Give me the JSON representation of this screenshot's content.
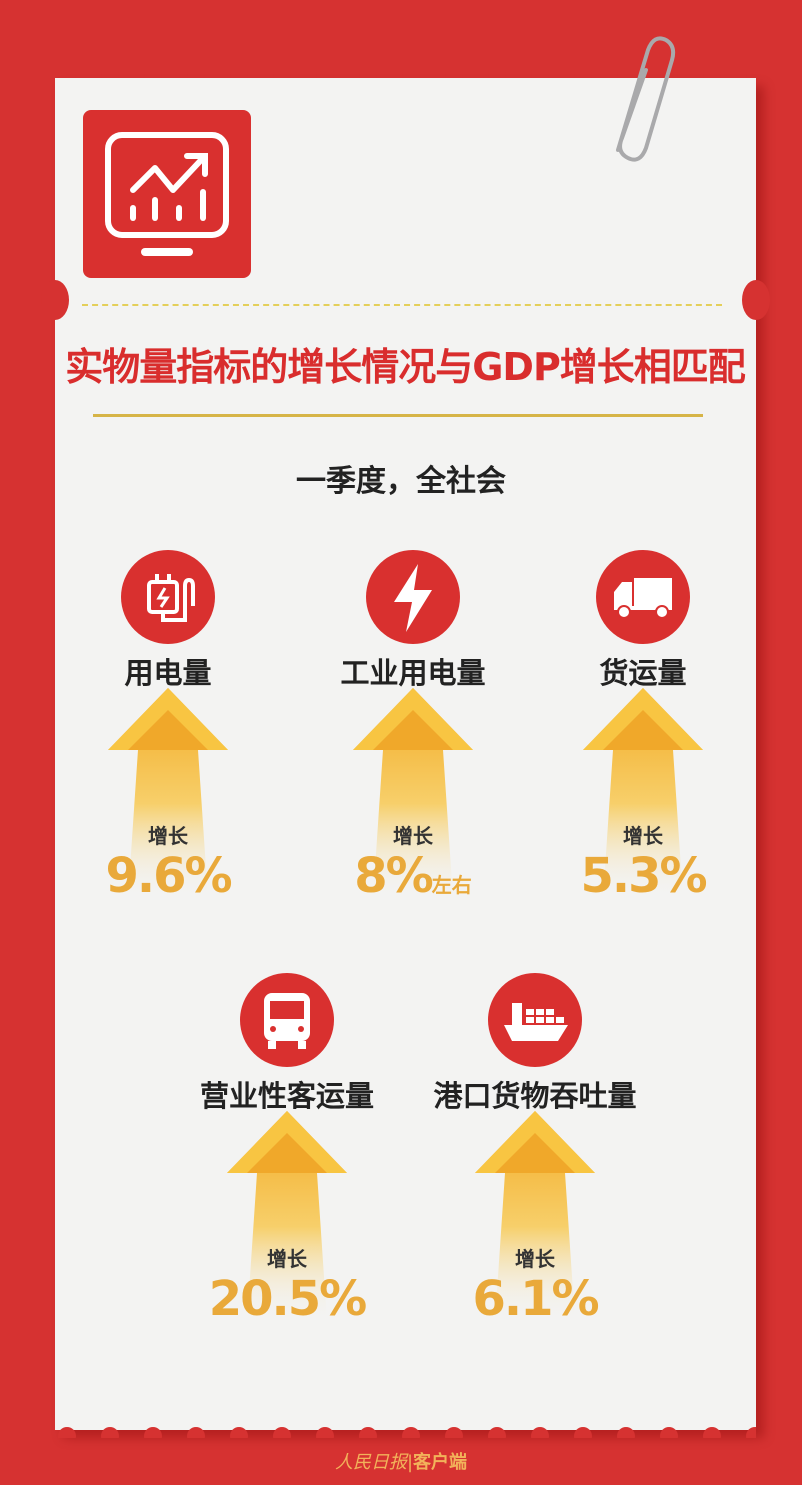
{
  "title": "实物量指标的增长情况与GDP增长相匹配",
  "subtitle": "一季度，全社会",
  "growth_label": "增长",
  "items": [
    {
      "label": "用电量",
      "value": "9.6%",
      "suffix": "",
      "icon": "power-plug-icon"
    },
    {
      "label": "工业用电量",
      "value": "8%",
      "suffix": "左右",
      "icon": "lightning-icon"
    },
    {
      "label": "货运量",
      "value": "5.3%",
      "suffix": "",
      "icon": "truck-icon"
    },
    {
      "label": "营业性客运量",
      "value": "20.5%",
      "suffix": "",
      "icon": "bus-icon"
    },
    {
      "label": "港口货物吞吐量",
      "value": "6.1%",
      "suffix": "",
      "icon": "cargo-ship-icon"
    }
  ],
  "footer": {
    "brand": "人民日报",
    "suffix": "客户端"
  },
  "colors": {
    "background": "#d63231",
    "accent_red": "#d9302f",
    "value_orange": "#e9a93a",
    "gold_line": "#d6b447"
  }
}
